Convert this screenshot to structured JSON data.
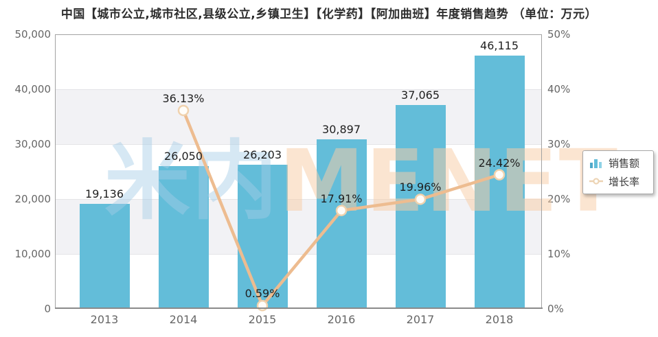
{
  "title": "中国【城市公立,城市社区,县级公立,乡镇卫生】【化学药】【阿加曲班】年度销售趋势 （单位：万元）",
  "watermark": {
    "cn": "米内",
    "en": "MENET"
  },
  "legend": {
    "items": [
      {
        "label": "销售额",
        "icon": "bar-chart-icon"
      },
      {
        "label": "增长率",
        "icon": "line-marker-icon"
      }
    ]
  },
  "colors": {
    "bar": "#63bdd9",
    "line": "#edbc90",
    "marker_fill": "#fffdf9",
    "marker_stroke": "#f0d2ae",
    "band": "#f2f2f5",
    "gridline": "#e4e4e7",
    "axis_text": "#666666",
    "label_text": "#1f1f1f",
    "title_text": "#2d2d2d"
  },
  "chart_data": {
    "type": "bar",
    "subtype": "bar-line-combo",
    "title": "中国【城市公立,城市社区,县级公立,乡镇卫生】【化学药】【阿加曲班】年度销售趋势",
    "unit": "万元",
    "categories": [
      "2013",
      "2014",
      "2015",
      "2016",
      "2017",
      "2018"
    ],
    "series": [
      {
        "name": "销售额",
        "type": "bar",
        "axis": "left",
        "values": [
          19136,
          26050,
          26203,
          30897,
          37065,
          46115
        ],
        "labels": [
          "19,136",
          "26,050",
          "26,203",
          "30,897",
          "37,065",
          "46,115"
        ]
      },
      {
        "name": "增长率",
        "type": "line",
        "axis": "right",
        "values": [
          null,
          36.13,
          0.59,
          17.91,
          19.96,
          24.42
        ],
        "labels": [
          null,
          "36.13%",
          "0.59%",
          "17.91%",
          "19.96%",
          "24.42%"
        ]
      }
    ],
    "left_axis": {
      "min": 0,
      "max": 50000,
      "tick_labels": [
        "0",
        "10,000",
        "20,000",
        "30,000",
        "40,000",
        "50,000"
      ]
    },
    "right_axis": {
      "min": 0,
      "max": 50,
      "tick_labels": [
        "0%",
        "10%",
        "20%",
        "30%",
        "40%",
        "50%"
      ]
    },
    "grid": true,
    "legend_position": "right"
  }
}
